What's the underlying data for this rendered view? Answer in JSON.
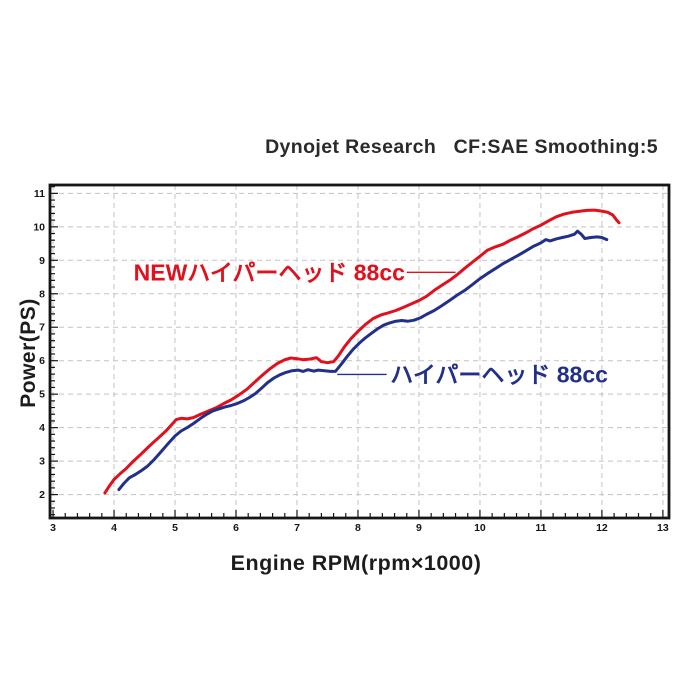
{
  "header": {
    "title": "Dynojet Research   CF:SAE Smoothing:5"
  },
  "chart_data": {
    "type": "line",
    "title": "Dynojet Research CF:SAE Smoothing:5",
    "xlabel": "Engine RPM(rpm×1000)",
    "ylabel": "Power(PS)",
    "xlim": [
      2.95,
      13.1
    ],
    "ylim": [
      1.3,
      11.25
    ],
    "x_ticks": [
      3,
      4,
      5,
      6,
      7,
      8,
      9,
      10,
      11,
      12,
      13
    ],
    "y_ticks": [
      2,
      3,
      4,
      5,
      6,
      7,
      8,
      9,
      10,
      11
    ],
    "minor_tick_step": 0.2,
    "grid": "dashed",
    "legend_position": "inline-annotations",
    "series": [
      {
        "name": "NEWハイパーヘッド 88cc",
        "color": "#e0101c",
        "points": [
          [
            3.85,
            2.05
          ],
          [
            3.92,
            2.25
          ],
          [
            4.0,
            2.45
          ],
          [
            4.1,
            2.62
          ],
          [
            4.2,
            2.78
          ],
          [
            4.32,
            3.0
          ],
          [
            4.45,
            3.22
          ],
          [
            4.58,
            3.45
          ],
          [
            4.72,
            3.68
          ],
          [
            4.85,
            3.9
          ],
          [
            4.95,
            4.1
          ],
          [
            5.02,
            4.24
          ],
          [
            5.1,
            4.28
          ],
          [
            5.2,
            4.26
          ],
          [
            5.3,
            4.3
          ],
          [
            5.42,
            4.4
          ],
          [
            5.55,
            4.5
          ],
          [
            5.68,
            4.6
          ],
          [
            5.8,
            4.72
          ],
          [
            5.92,
            4.83
          ],
          [
            6.05,
            4.98
          ],
          [
            6.18,
            5.15
          ],
          [
            6.3,
            5.35
          ],
          [
            6.42,
            5.55
          ],
          [
            6.55,
            5.75
          ],
          [
            6.68,
            5.92
          ],
          [
            6.8,
            6.03
          ],
          [
            6.9,
            6.08
          ],
          [
            7.0,
            6.06
          ],
          [
            7.1,
            6.03
          ],
          [
            7.22,
            6.05
          ],
          [
            7.32,
            6.09
          ],
          [
            7.4,
            5.97
          ],
          [
            7.5,
            5.94
          ],
          [
            7.6,
            5.97
          ],
          [
            7.68,
            6.15
          ],
          [
            7.78,
            6.42
          ],
          [
            7.88,
            6.65
          ],
          [
            8.0,
            6.88
          ],
          [
            8.12,
            7.08
          ],
          [
            8.25,
            7.26
          ],
          [
            8.38,
            7.37
          ],
          [
            8.5,
            7.43
          ],
          [
            8.62,
            7.5
          ],
          [
            8.75,
            7.6
          ],
          [
            8.88,
            7.7
          ],
          [
            9.0,
            7.8
          ],
          [
            9.12,
            7.92
          ],
          [
            9.25,
            8.1
          ],
          [
            9.38,
            8.26
          ],
          [
            9.5,
            8.4
          ],
          [
            9.62,
            8.56
          ],
          [
            9.75,
            8.76
          ],
          [
            9.88,
            8.95
          ],
          [
            10.0,
            9.12
          ],
          [
            10.12,
            9.3
          ],
          [
            10.25,
            9.4
          ],
          [
            10.38,
            9.48
          ],
          [
            10.5,
            9.6
          ],
          [
            10.62,
            9.7
          ],
          [
            10.75,
            9.82
          ],
          [
            10.88,
            9.95
          ],
          [
            11.0,
            10.05
          ],
          [
            11.12,
            10.17
          ],
          [
            11.25,
            10.3
          ],
          [
            11.38,
            10.38
          ],
          [
            11.5,
            10.43
          ],
          [
            11.62,
            10.46
          ],
          [
            11.75,
            10.49
          ],
          [
            11.88,
            10.5
          ],
          [
            12.0,
            10.47
          ],
          [
            12.1,
            10.43
          ],
          [
            12.18,
            10.35
          ],
          [
            12.25,
            10.18
          ],
          [
            12.28,
            10.12
          ]
        ]
      },
      {
        "name": "ハイパーヘッド 88cc",
        "color": "#23308a",
        "points": [
          [
            4.08,
            2.15
          ],
          [
            4.16,
            2.33
          ],
          [
            4.25,
            2.5
          ],
          [
            4.35,
            2.6
          ],
          [
            4.45,
            2.72
          ],
          [
            4.55,
            2.85
          ],
          [
            4.66,
            3.05
          ],
          [
            4.78,
            3.3
          ],
          [
            4.9,
            3.55
          ],
          [
            5.0,
            3.75
          ],
          [
            5.1,
            3.9
          ],
          [
            5.2,
            4.0
          ],
          [
            5.3,
            4.12
          ],
          [
            5.42,
            4.28
          ],
          [
            5.52,
            4.4
          ],
          [
            5.62,
            4.5
          ],
          [
            5.72,
            4.56
          ],
          [
            5.82,
            4.62
          ],
          [
            5.92,
            4.66
          ],
          [
            6.02,
            4.72
          ],
          [
            6.12,
            4.8
          ],
          [
            6.22,
            4.9
          ],
          [
            6.32,
            5.02
          ],
          [
            6.42,
            5.18
          ],
          [
            6.52,
            5.35
          ],
          [
            6.62,
            5.48
          ],
          [
            6.72,
            5.58
          ],
          [
            6.82,
            5.65
          ],
          [
            6.92,
            5.7
          ],
          [
            7.02,
            5.72
          ],
          [
            7.1,
            5.68
          ],
          [
            7.18,
            5.73
          ],
          [
            7.27,
            5.69
          ],
          [
            7.35,
            5.72
          ],
          [
            7.45,
            5.7
          ],
          [
            7.55,
            5.68
          ],
          [
            7.63,
            5.68
          ],
          [
            7.72,
            5.88
          ],
          [
            7.82,
            6.12
          ],
          [
            7.92,
            6.34
          ],
          [
            8.02,
            6.52
          ],
          [
            8.12,
            6.68
          ],
          [
            8.22,
            6.82
          ],
          [
            8.32,
            6.95
          ],
          [
            8.42,
            7.06
          ],
          [
            8.52,
            7.13
          ],
          [
            8.62,
            7.18
          ],
          [
            8.72,
            7.2
          ],
          [
            8.82,
            7.18
          ],
          [
            8.92,
            7.21
          ],
          [
            9.02,
            7.28
          ],
          [
            9.12,
            7.38
          ],
          [
            9.25,
            7.5
          ],
          [
            9.38,
            7.65
          ],
          [
            9.5,
            7.8
          ],
          [
            9.62,
            7.95
          ],
          [
            9.75,
            8.1
          ],
          [
            9.88,
            8.28
          ],
          [
            10.0,
            8.45
          ],
          [
            10.12,
            8.6
          ],
          [
            10.25,
            8.75
          ],
          [
            10.38,
            8.9
          ],
          [
            10.5,
            9.02
          ],
          [
            10.62,
            9.14
          ],
          [
            10.75,
            9.28
          ],
          [
            10.88,
            9.42
          ],
          [
            11.0,
            9.52
          ],
          [
            11.08,
            9.62
          ],
          [
            11.15,
            9.58
          ],
          [
            11.25,
            9.64
          ],
          [
            11.35,
            9.68
          ],
          [
            11.45,
            9.72
          ],
          [
            11.55,
            9.78
          ],
          [
            11.6,
            9.87
          ],
          [
            11.66,
            9.78
          ],
          [
            11.72,
            9.65
          ],
          [
            11.82,
            9.68
          ],
          [
            11.92,
            9.7
          ],
          [
            12.0,
            9.68
          ],
          [
            12.08,
            9.62
          ]
        ]
      }
    ],
    "annotations": [
      {
        "text": "NEWハイパーヘッド 88cc",
        "color": "#e0101c",
        "anchor": "end",
        "label_at": {
          "rpm": 8.77,
          "ps": 8.64
        },
        "leader_from": {
          "rpm": 8.8,
          "ps": 8.64
        },
        "leader_to": {
          "rpm": 9.6,
          "ps": 8.64
        }
      },
      {
        "text": "ハイパーヘッド 88cc",
        "color": "#23308a",
        "anchor": "start",
        "label_at": {
          "rpm": 8.53,
          "ps": 5.59
        },
        "leader_from": {
          "rpm": 7.66,
          "ps": 5.59
        },
        "leader_to": {
          "rpm": 8.47,
          "ps": 5.59
        }
      }
    ]
  }
}
